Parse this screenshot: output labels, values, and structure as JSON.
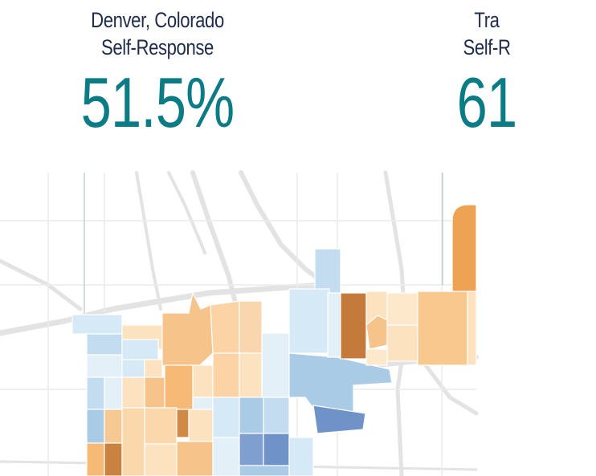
{
  "panels": [
    {
      "place": "Denver, Colorado",
      "metric": "Self-Response",
      "value": "51.5%"
    },
    {
      "place": "Tra",
      "metric": "Self-R",
      "value": "61"
    }
  ],
  "map": {
    "colors": {
      "road": "#e3e3e3",
      "tract_border": "#ffffff",
      "blue_light": "#d6e9f6",
      "blue_mid": "#a9cbe6",
      "blue_dark": "#6f93c9",
      "orange_light": "#fde2bf",
      "orange_mid": "#f6b976",
      "orange_dark": "#c47a3b"
    }
  }
}
